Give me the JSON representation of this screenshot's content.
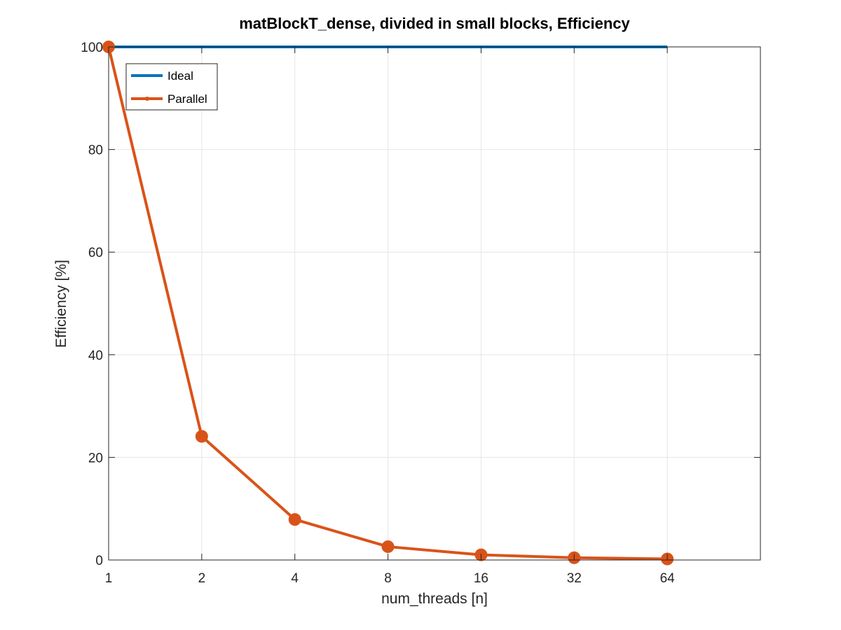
{
  "chart_data": {
    "type": "line",
    "title": "matBlockT_dense, divided in small blocks, Efficiency",
    "xlabel": "num_threads [n]",
    "ylabel": "Efficiency [%]",
    "x_scale": "log2",
    "x": [
      1,
      2,
      4,
      8,
      16,
      32,
      64
    ],
    "x_tick_labels": [
      "1",
      "2",
      "4",
      "8",
      "16",
      "32",
      "64"
    ],
    "xlim": [
      1,
      128
    ],
    "ylim": [
      0,
      100
    ],
    "y_ticks": [
      0,
      20,
      40,
      60,
      80,
      100
    ],
    "y_tick_labels": [
      "0",
      "20",
      "40",
      "60",
      "80",
      "100"
    ],
    "grid": true,
    "legend_position": "top-left",
    "series": [
      {
        "name": "Ideal",
        "values": [
          100,
          100,
          100,
          100,
          100,
          100,
          100
        ],
        "color": "#0072BD",
        "markers": false
      },
      {
        "name": "Parallel",
        "values": [
          100,
          24.1,
          7.9,
          2.6,
          1.0,
          0.45,
          0.2
        ],
        "color": "#D95319",
        "markers": true
      }
    ]
  }
}
